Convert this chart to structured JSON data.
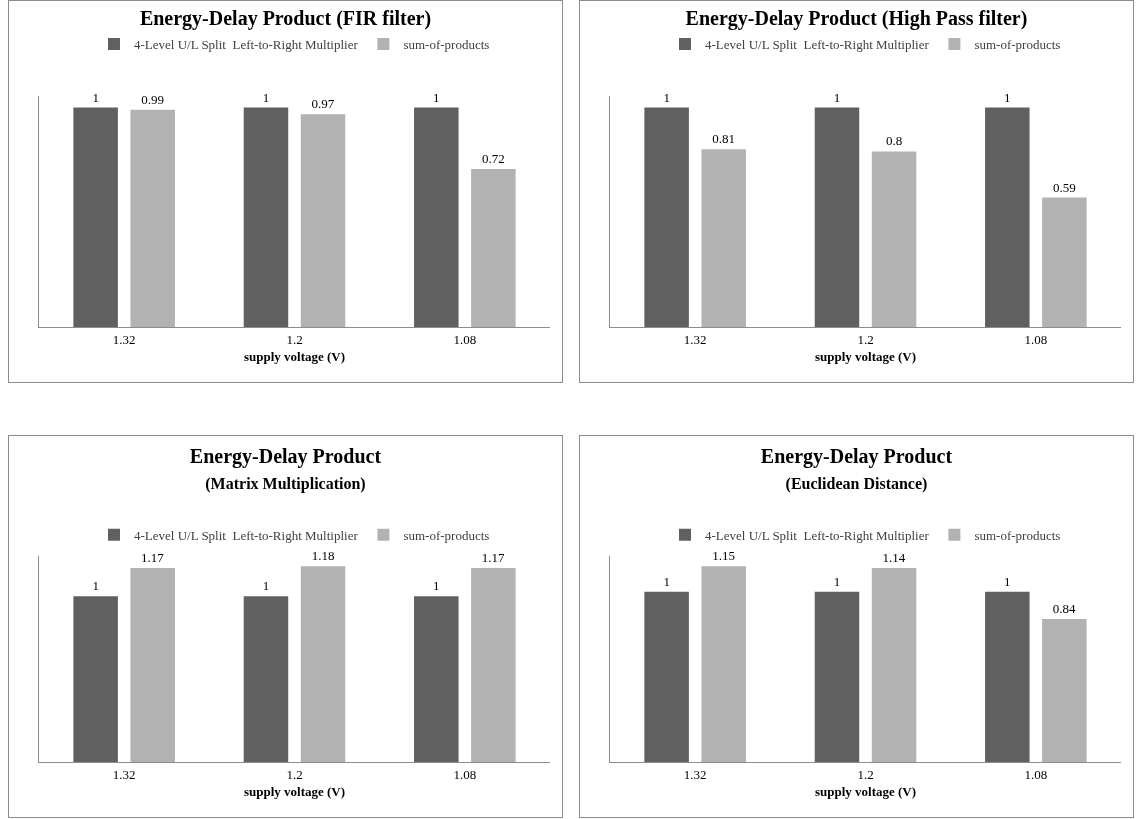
{
  "chart_data": [
    {
      "type": "bar",
      "title": "Energy-Delay Product (FIR filter)",
      "xlabel": "supply voltage (V)",
      "categories": [
        "1.32",
        "1.2",
        "1.08"
      ],
      "legend": "top",
      "grid": false,
      "data_labels": true,
      "series": [
        {
          "name": "4-Level U/L Split  Left-to-Right Multiplier",
          "color": "#606060",
          "values": [
            1,
            1,
            1
          ]
        },
        {
          "name": "sum-of-products",
          "color": "#b2b2b2",
          "values": [
            0.99,
            0.97,
            0.72
          ]
        }
      ]
    },
    {
      "type": "bar",
      "title": "Energy-Delay Product (High Pass filter)",
      "xlabel": "supply voltage (V)",
      "categories": [
        "1.32",
        "1.2",
        "1.08"
      ],
      "legend": "top",
      "grid": false,
      "data_labels": true,
      "series": [
        {
          "name": "4-Level U/L Split  Left-to-Right Multiplier",
          "color": "#606060",
          "values": [
            1,
            1,
            1
          ]
        },
        {
          "name": "sum-of-products",
          "color": "#b2b2b2",
          "values": [
            0.81,
            0.8,
            0.59
          ]
        }
      ]
    },
    {
      "type": "bar",
      "title": "Energy-Delay Product\n(Matrix Multiplication)",
      "xlabel": "supply voltage (V)",
      "categories": [
        "1.32",
        "1.2",
        "1.08"
      ],
      "legend": "top",
      "grid": false,
      "data_labels": true,
      "series": [
        {
          "name": "4-Level U/L Split  Left-to-Right Multiplier",
          "color": "#606060",
          "values": [
            1,
            1,
            1
          ]
        },
        {
          "name": "sum-of-products",
          "color": "#b2b2b2",
          "values": [
            1.17,
            1.18,
            1.17
          ]
        }
      ]
    },
    {
      "type": "bar",
      "title": "Energy-Delay Product\n(Euclidean Distance)",
      "xlabel": "supply voltage (V)",
      "categories": [
        "1.32",
        "1.2",
        "1.08"
      ],
      "legend": "top",
      "grid": false,
      "data_labels": true,
      "series": [
        {
          "name": "4-Level U/L Split  Left-to-Right Multiplier",
          "color": "#606060",
          "values": [
            1,
            1,
            1
          ]
        },
        {
          "name": "sum-of-products",
          "color": "#b2b2b2",
          "values": [
            1.15,
            1.14,
            0.84
          ]
        }
      ]
    }
  ]
}
